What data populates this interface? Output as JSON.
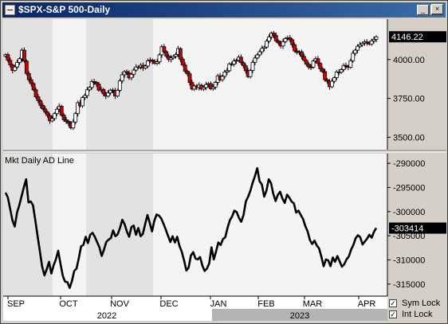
{
  "window": {
    "title": "$SPX-S&P 500-Daily",
    "minimize_glyph": "_",
    "maximize_glyph": "□",
    "close_glyph": "×"
  },
  "controls": {
    "sym_lock": {
      "label": "Sym Lock",
      "checked": true,
      "mark": "✓"
    },
    "int_lock": {
      "label": "Int Lock",
      "checked": true,
      "mark": "✓"
    }
  },
  "colors": {
    "up": "#ffffff",
    "down": "#cc0000",
    "line": "#000000",
    "bg_light": "#f4f4f4",
    "bg_dark": "#e2e2e2"
  },
  "chart_data": [
    {
      "type": "candlestick",
      "title": "$SPX-S&P 500-Daily",
      "ylim": [
        3420,
        4260
      ],
      "yticks": [
        3500,
        3750,
        4000
      ],
      "ytick_labels": [
        "3500.00",
        "3750.00",
        "4000.00"
      ],
      "last_value": 4146.22,
      "last_value_label": "4146.22",
      "grid": false,
      "close": [
        4031,
        3995,
        3965,
        3930,
        3952,
        3981,
        4005,
        4060,
        3990,
        3910,
        3870,
        3845,
        3805,
        3760,
        3735,
        3705,
        3682,
        3662,
        3640,
        3605,
        3620,
        3652,
        3680,
        3700,
        3642,
        3612,
        3602,
        3590,
        3560,
        3598,
        3652,
        3722,
        3702,
        3755,
        3768,
        3805,
        3820,
        3858,
        3852,
        3842,
        3803,
        3808,
        3780,
        3765,
        3785,
        3803,
        3800,
        3765,
        3802,
        3862,
        3902,
        3922,
        3912,
        3882,
        3905,
        3932,
        3952,
        3952,
        3963,
        3945,
        3958,
        3992,
        3996,
        3988,
        3975,
        3985,
        4030,
        4082,
        4050,
        4021,
        4000,
        4010,
        4020,
        4032,
        4070,
        4002,
        3965,
        3925,
        3908,
        3852,
        3810,
        3830,
        3820,
        3835,
        3810,
        3820,
        3839,
        3845,
        3812,
        3822,
        3853,
        3895,
        3870,
        3892,
        3920,
        3928,
        3972,
        3970,
        3990,
        3995,
        4015,
        3980,
        3960,
        3928,
        3890,
        3929,
        3982,
        4010,
        4030,
        4050,
        4072,
        4080,
        4118,
        4145,
        4170,
        4155,
        4120,
        4107,
        4087,
        4115,
        4135,
        4140,
        4127,
        4095,
        4055,
        4045,
        4050,
        4020,
        3995,
        3970,
        3952,
        3951,
        3990,
        4005,
        3975,
        3940,
        3922,
        3870,
        3860,
        3825,
        3860,
        3883,
        3920,
        3918,
        3935,
        3962,
        3955,
        3950,
        3992,
        4040,
        4060,
        4085,
        4095,
        4105,
        4113,
        4108,
        4100,
        4120,
        4130,
        4146
      ]
    },
    {
      "type": "line",
      "title": "Mkt Daily AD Line",
      "ylim": [
        -317500,
        -288000
      ],
      "yticks": [
        -290000,
        -295000,
        -300000,
        -305000,
        -310000,
        -315000
      ],
      "ytick_labels": [
        "-290000",
        "-295000",
        "-300000",
        "-305000",
        "-310000",
        "-315000"
      ],
      "last_value": -303414,
      "last_value_label": "-303414",
      "grid": false,
      "values": [
        -296100,
        -297100,
        -299400,
        -301800,
        -303100,
        -300200,
        -298700,
        -296800,
        -294900,
        -293300,
        -298100,
        -297900,
        -298700,
        -301800,
        -305100,
        -308300,
        -311400,
        -313200,
        -311900,
        -310400,
        -312800,
        -311100,
        -309900,
        -308100,
        -310800,
        -313300,
        -314500,
        -314600,
        -315800,
        -314400,
        -312300,
        -311800,
        -309600,
        -307200,
        -306900,
        -305200,
        -306500,
        -304800,
        -304400,
        -305200,
        -306300,
        -307400,
        -309200,
        -307900,
        -306300,
        -305800,
        -305500,
        -303900,
        -305100,
        -304700,
        -303400,
        -301700,
        -302600,
        -304100,
        -305200,
        -303200,
        -302900,
        -304800,
        -303400,
        -305100,
        -304600,
        -302600,
        -300700,
        -302300,
        -304100,
        -301900,
        -300600,
        -300800,
        -301400,
        -302500,
        -303700,
        -305000,
        -306300,
        -305100,
        -306400,
        -305200,
        -307100,
        -308300,
        -310100,
        -312200,
        -311600,
        -309100,
        -308400,
        -309700,
        -309900,
        -309400,
        -311200,
        -312300,
        -311800,
        -310700,
        -307400,
        -309900,
        -308200,
        -306400,
        -306900,
        -305700,
        -305300,
        -303400,
        -301800,
        -301000,
        -299800,
        -300100,
        -301300,
        -302100,
        -300700,
        -297900,
        -296900,
        -295700,
        -294000,
        -292600,
        -291000,
        -293700,
        -294400,
        -296900,
        -295700,
        -293300,
        -294100,
        -296300,
        -297800,
        -296500,
        -295900,
        -297300,
        -298200,
        -296500,
        -297100,
        -297900,
        -298300,
        -300200,
        -299800,
        -300700,
        -301500,
        -303000,
        -304100,
        -305900,
        -306700,
        -306000,
        -307000,
        -307600,
        -309300,
        -311300,
        -309900,
        -310100,
        -311300,
        -309500,
        -310400,
        -309200,
        -310300,
        -311400,
        -310900,
        -309900,
        -309300,
        -307900,
        -306900,
        -305500,
        -304900,
        -305300,
        -306800,
        -306200,
        -305600,
        -304800,
        -305400,
        -304200,
        -303400
      ]
    }
  ],
  "x_axis": {
    "months": [
      "SEP",
      "OCT",
      "NOV",
      "DEC",
      "JAN",
      "FEB",
      "MAR",
      "APR"
    ],
    "years": [
      "2022",
      "2023"
    ]
  }
}
